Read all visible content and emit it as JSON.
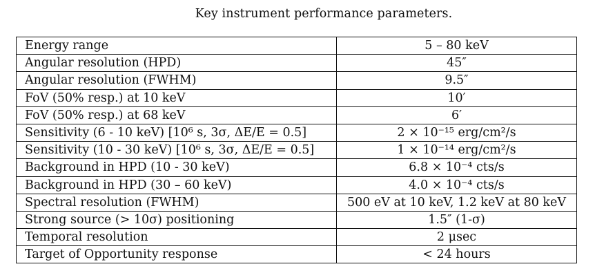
{
  "caption": "Key instrument performance parameters.",
  "table": {
    "rows": [
      {
        "parameter": "Energy range",
        "value": "5 – 80 keV"
      },
      {
        "parameter": "Angular resolution (HPD)",
        "value": "45″"
      },
      {
        "parameter": "Angular resolution (FWHM)",
        "value": "9.5″"
      },
      {
        "parameter": "FoV (50% resp.) at 10 keV",
        "value": "10′"
      },
      {
        "parameter": "FoV (50% resp.) at 68 keV",
        "value": "6′"
      },
      {
        "parameter": "Sensitivity (6 - 10 keV) [10⁶ s, 3σ, ΔE/E = 0.5]",
        "value": "2 × 10⁻¹⁵ erg/cm²/s"
      },
      {
        "parameter": "Sensitivity (10 - 30 keV) [10⁶ s, 3σ, ΔE/E = 0.5]",
        "value": "1 × 10⁻¹⁴ erg/cm²/s"
      },
      {
        "parameter": "Background in HPD (10 - 30 keV)",
        "value": "6.8 × 10⁻⁴ cts/s"
      },
      {
        "parameter": "Background in HPD (30 – 60 keV)",
        "value": "4.0 × 10⁻⁴ cts/s"
      },
      {
        "parameter": "Spectral resolution (FWHM)",
        "value": "500 eV at 10 keV, 1.2 keV at 80 keV"
      },
      {
        "parameter": "Strong source (> 10σ) positioning",
        "value": "1.5″ (1-σ)"
      },
      {
        "parameter": "Temporal resolution",
        "value": "2 μsec"
      },
      {
        "parameter": "Target of Opportunity response",
        "value": "< 24 hours"
      }
    ]
  }
}
